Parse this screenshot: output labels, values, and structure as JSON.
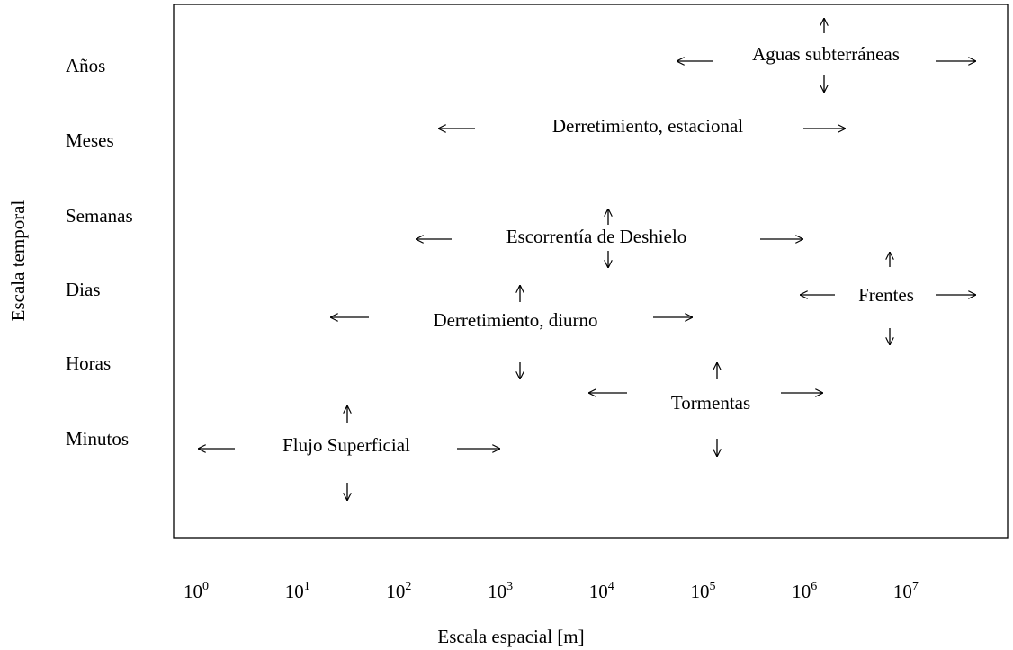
{
  "y_axis": {
    "label": "Escala temporal",
    "labels": [
      "Años",
      "Meses",
      "Semanas",
      "Dias",
      "Horas",
      "Minutos"
    ]
  },
  "x_axis": {
    "label": "Escala espacial [m]",
    "labels": [
      {
        "base": "10",
        "exponent": "0"
      },
      {
        "base": "10",
        "exponent": "1"
      },
      {
        "base": "10",
        "exponent": "2"
      },
      {
        "base": "10",
        "exponent": "3"
      },
      {
        "base": "10",
        "exponent": "4"
      },
      {
        "base": "10",
        "exponent": "5"
      },
      {
        "base": "10",
        "exponent": "6"
      },
      {
        "base": "10",
        "exponent": "7"
      }
    ]
  },
  "processes": [
    "Aguas subterráneas",
    "Derretimiento, estacional",
    "Escorrentía de Deshielo",
    "Frentes",
    "Derretimiento, diurno",
    "Tormentas",
    "Flujo Superficial"
  ]
}
